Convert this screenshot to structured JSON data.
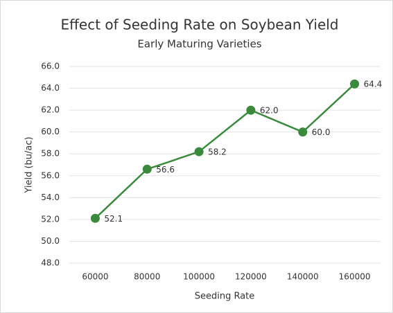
{
  "chart_data": {
    "type": "line",
    "title": "Effect of Seeding Rate on Soybean Yield",
    "subtitle": "Early Maturing Varieties",
    "x_label": "Seeding Rate",
    "y_label": "Yield (bu/ac)",
    "categories": [
      "60000",
      "80000",
      "100000",
      "120000",
      "140000",
      "160000"
    ],
    "series": [
      {
        "name": "Yield",
        "color": "#3a8a3c",
        "values": [
          52.1,
          56.6,
          58.2,
          62,
          60,
          64.4
        ],
        "value_labels": [
          "52.1",
          "56.6",
          "58.2",
          "62.0",
          "60.0",
          "64.4"
        ]
      }
    ],
    "ylim": [
      48,
      66
    ],
    "yticks": [
      {
        "value": 48,
        "label": "48.0"
      },
      {
        "value": 50,
        "label": "50.0"
      },
      {
        "value": 52,
        "label": "52.0"
      },
      {
        "value": 54,
        "label": "54.0"
      },
      {
        "value": 56,
        "label": "56.0"
      },
      {
        "value": 58,
        "label": "58.0"
      },
      {
        "value": 60,
        "label": "60.0"
      },
      {
        "value": 62,
        "label": "62.0"
      },
      {
        "value": 64,
        "label": "64.0"
      },
      {
        "value": 66,
        "label": "66.0"
      }
    ],
    "grid": true
  }
}
